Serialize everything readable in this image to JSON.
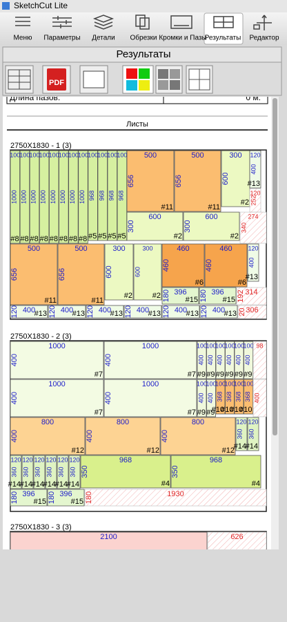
{
  "app": {
    "title": "SketchCut Lite",
    "toolbar": [
      "Меню",
      "Параметры",
      "Детали",
      "Обрезки",
      "Кромки и Пазы",
      "Результаты",
      "Редактор"
    ]
  },
  "panel": {
    "title": "Результаты",
    "pdf_icon": "PDF"
  },
  "report": {
    "groove_length_label": "Длина пазов:",
    "groove_length_value": "0 м.",
    "sheets_heading": "Листы"
  },
  "part_colors": {
    "#8": "#d6f0a0",
    "#5": "#d6f0a0",
    "#11": "#fbbd70",
    "#2": "#ecf9c2",
    "#13": "#effbe6",
    "#6": "#f6a44c",
    "#15": "#e4f6cf",
    "#7": "#f3fbe3",
    "#9": "#f0f8dc",
    "#10": "#fbbd70",
    "#12": "#fdd393",
    "#14": "#dff3c2",
    "#4": "#d9f08c",
    "": "#fbd3cf"
  },
  "sheets": [
    {
      "title": "2750X1830 - 1 (3)",
      "parts": [
        {
          "w": 100,
          "h": 1000,
          "id": "#8"
        },
        {
          "w": 100,
          "h": 1000,
          "id": "#8"
        },
        {
          "w": 100,
          "h": 1000,
          "id": "#8"
        },
        {
          "w": 100,
          "h": 1000,
          "id": "#8"
        },
        {
          "w": 100,
          "h": 1000,
          "id": "#8"
        },
        {
          "w": 100,
          "h": 1000,
          "id": "#8"
        },
        {
          "w": 100,
          "h": 1000,
          "id": "#8"
        },
        {
          "w": 100,
          "h": 1000,
          "id": "#8"
        },
        {
          "w": 100,
          "h": 968,
          "id": "#5"
        },
        {
          "w": 100,
          "h": 968,
          "id": "#5"
        },
        {
          "w": 100,
          "h": 968,
          "id": "#5"
        },
        {
          "w": 100,
          "h": 968,
          "id": "#5"
        },
        {
          "w": 500,
          "h": 656,
          "id": "#11"
        },
        {
          "w": 500,
          "h": 656,
          "id": "#11"
        },
        {
          "w": 300,
          "h": 600,
          "id": "#2"
        },
        {
          "w": 120,
          "h": 400,
          "id": "#13"
        },
        {
          "w": 600,
          "h": 300,
          "id": "#2"
        },
        {
          "w": 600,
          "h": 300,
          "id": "#2"
        },
        {
          "w": 500,
          "h": 656,
          "id": "#11"
        },
        {
          "w": 500,
          "h": 656,
          "id": "#11"
        },
        {
          "w": 300,
          "h": 600,
          "id": "#2"
        },
        {
          "w": 300,
          "h": 600,
          "id": "#2"
        },
        {
          "w": 460,
          "h": 460,
          "id": "#6"
        },
        {
          "w": 460,
          "h": 460,
          "id": "#6"
        },
        {
          "w": 120,
          "h": 400,
          "id": "#13"
        },
        {
          "w": 396,
          "h": 180,
          "id": "#15"
        },
        {
          "w": 396,
          "h": 180,
          "id": "#15"
        },
        {
          "w": 400,
          "h": 120,
          "id": "#13"
        },
        {
          "w": 400,
          "h": 120,
          "id": "#13"
        },
        {
          "w": 400,
          "h": 120,
          "id": "#13"
        },
        {
          "w": 400,
          "h": 120,
          "id": "#13"
        },
        {
          "w": 400,
          "h": 120,
          "id": "#13"
        },
        {
          "w": 400,
          "h": 120,
          "id": "#13"
        }
      ],
      "offcuts": [
        {
          "w": 120,
          "h": 252
        },
        {
          "w": 274,
          "h": 340
        },
        {
          "w": 314,
          "h": 192
        },
        {
          "w": 306,
          "h": 20
        }
      ]
    },
    {
      "title": "2750X1830 - 2 (3)",
      "parts": [
        {
          "w": 1000,
          "h": 400,
          "id": "#7"
        },
        {
          "w": 1000,
          "h": 400,
          "id": "#7"
        },
        {
          "w": 100,
          "h": 400,
          "id": "#9"
        },
        {
          "w": 100,
          "h": 400,
          "id": "#9"
        },
        {
          "w": 100,
          "h": 400,
          "id": "#9"
        },
        {
          "w": 100,
          "h": 400,
          "id": "#9"
        },
        {
          "w": 100,
          "h": 400,
          "id": "#9"
        },
        {
          "w": 100,
          "h": 400,
          "id": "#9"
        },
        {
          "w": 1000,
          "h": 400,
          "id": "#7"
        },
        {
          "w": 1000,
          "h": 400,
          "id": "#7"
        },
        {
          "w": 100,
          "h": 400,
          "id": "#9"
        },
        {
          "w": 100,
          "h": 400,
          "id": "#9"
        },
        {
          "w": 100,
          "h": 368,
          "id": "#10"
        },
        {
          "w": 100,
          "h": 368,
          "id": "#10"
        },
        {
          "w": 100,
          "h": 368,
          "id": "#10"
        },
        {
          "w": 100,
          "h": 368,
          "id": "#10"
        },
        {
          "w": 800,
          "h": 400,
          "id": "#12"
        },
        {
          "w": 800,
          "h": 400,
          "id": "#12"
        },
        {
          "w": 800,
          "h": 400,
          "id": "#12"
        },
        {
          "w": 120,
          "h": 360,
          "id": "#14"
        },
        {
          "w": 120,
          "h": 360,
          "id": "#14"
        },
        {
          "w": 120,
          "h": 360,
          "id": "#14"
        },
        {
          "w": 120,
          "h": 360,
          "id": "#14"
        },
        {
          "w": 120,
          "h": 360,
          "id": "#14"
        },
        {
          "w": 120,
          "h": 360,
          "id": "#14"
        },
        {
          "w": 120,
          "h": 360,
          "id": "#14"
        },
        {
          "w": 120,
          "h": 360,
          "id": "#14"
        },
        {
          "w": 968,
          "h": 350,
          "id": "#4"
        },
        {
          "w": 968,
          "h": 350,
          "id": "#4"
        },
        {
          "w": 396,
          "h": 180,
          "id": "#15"
        },
        {
          "w": 396,
          "h": 180,
          "id": "#15"
        }
      ],
      "offcuts": [
        {
          "w": 98
        },
        {
          "h": 400
        },
        {
          "w": 1930,
          "h": 180
        }
      ]
    },
    {
      "title": "2750X1830 - 3 (3)",
      "parts": [
        {
          "w": 2100
        }
      ],
      "offcuts": [
        {
          "w": 626
        }
      ]
    }
  ]
}
